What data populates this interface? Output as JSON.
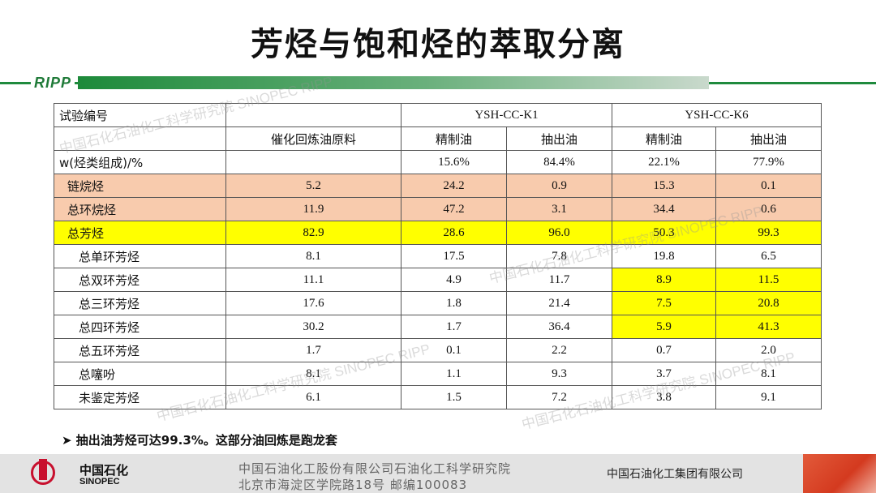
{
  "title": "芳烃与饱和烃的萃取分离",
  "topbar": {
    "logo_text": "RIPP"
  },
  "watermark": "中国石化石油化工科学研究院 SINOPEC RIPP",
  "table": {
    "header": {
      "corner": "试验编号",
      "feed": "催化回炼油原料",
      "groups": [
        "YSH-CC-K1",
        "YSH-CC-K6"
      ],
      "sub": [
        "精制油",
        "抽出油",
        "精制油",
        "抽出油"
      ]
    },
    "yield_row": {
      "label": "w(烃类组成)/%",
      "feed": "",
      "values": [
        "15.6%",
        "84.4%",
        "22.1%",
        "77.9%"
      ]
    },
    "rows": [
      {
        "label": "链烷烃",
        "values": [
          "5.2",
          "24.2",
          "0.9",
          "15.3",
          "0.1"
        ]
      },
      {
        "label": "总环烷烃",
        "values": [
          "11.9",
          "47.2",
          "3.1",
          "34.4",
          "0.6"
        ]
      },
      {
        "label": "总芳烃",
        "values": [
          "82.9",
          "28.6",
          "96.0",
          "50.3",
          "99.3"
        ]
      },
      {
        "label": "总单环芳烃",
        "values": [
          "8.1",
          "17.5",
          "7.8",
          "19.8",
          "6.5"
        ]
      },
      {
        "label": "总双环芳烃",
        "values": [
          "11.1",
          "4.9",
          "11.7",
          "8.9",
          "11.5"
        ]
      },
      {
        "label": "总三环芳烃",
        "values": [
          "17.6",
          "1.8",
          "21.4",
          "7.5",
          "20.8"
        ]
      },
      {
        "label": "总四环芳烃",
        "values": [
          "30.2",
          "1.7",
          "36.4",
          "5.9",
          "41.3"
        ]
      },
      {
        "label": "总五环芳烃",
        "values": [
          "1.7",
          "0.1",
          "2.2",
          "0.7",
          "2.0"
        ]
      },
      {
        "label": "总噻吩",
        "values": [
          "8.1",
          "1.1",
          "9.3",
          "3.7",
          "8.1"
        ]
      },
      {
        "label": "未鉴定芳烃",
        "values": [
          "6.1",
          "1.5",
          "7.2",
          "3.8",
          "9.1"
        ]
      }
    ]
  },
  "note": "➤ 抽出油芳烃可达99.3%。这部分油回炼是跑龙套",
  "footer": {
    "logo_cn": "中国石化",
    "logo_en": "SINOPEC",
    "address_line1": "中国石油化工股份有限公司石油化工科学研究院",
    "address_line2": "北京市海淀区学院路18号  邮编100083",
    "group": "中国石油化工集团有限公司"
  },
  "colors": {
    "salmon": "#f8cbad",
    "highlight": "#ffff00",
    "brand_green": "#1f8a3d",
    "brand_red": "#c8102e"
  }
}
